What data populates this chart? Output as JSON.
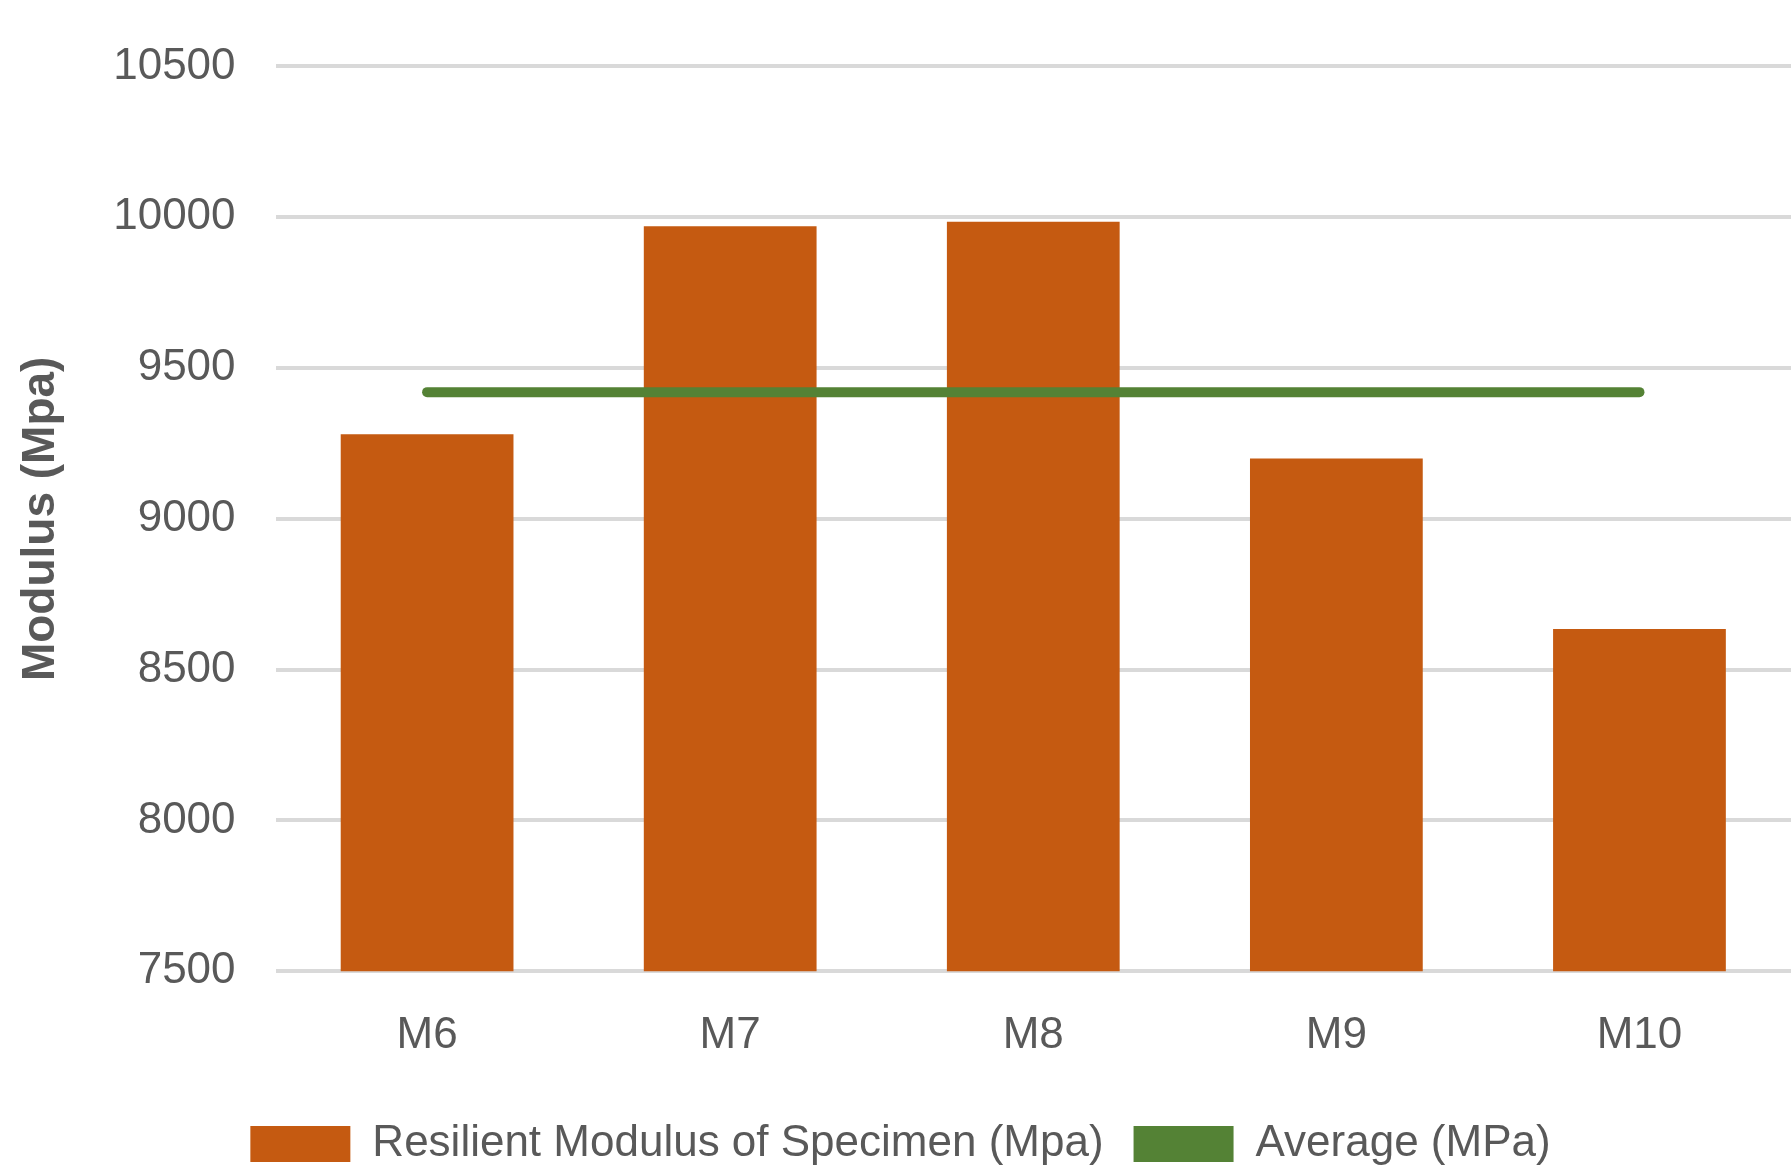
{
  "chart_data": {
    "type": "bar",
    "ylabel": "Modulus (Mpa)",
    "categories": [
      "M6",
      "M7",
      "M8",
      "M9",
      "M10"
    ],
    "series": [
      {
        "name": "Resilient Modulus of Specimen (Mpa)",
        "color": "#c55a11",
        "values": [
          9280,
          9970,
          9985,
          9200,
          8635
        ]
      },
      {
        "type": "line",
        "name": "Average (MPa)",
        "color": "#548235",
        "values": [
          9420,
          9420,
          9420,
          9420,
          9420
        ]
      }
    ],
    "ylim": [
      7500,
      10500
    ],
    "yticks": [
      7500,
      8000,
      8500,
      9000,
      9500,
      10000,
      10500
    ],
    "grid": "y",
    "legend": "bottom",
    "marker": "none"
  }
}
